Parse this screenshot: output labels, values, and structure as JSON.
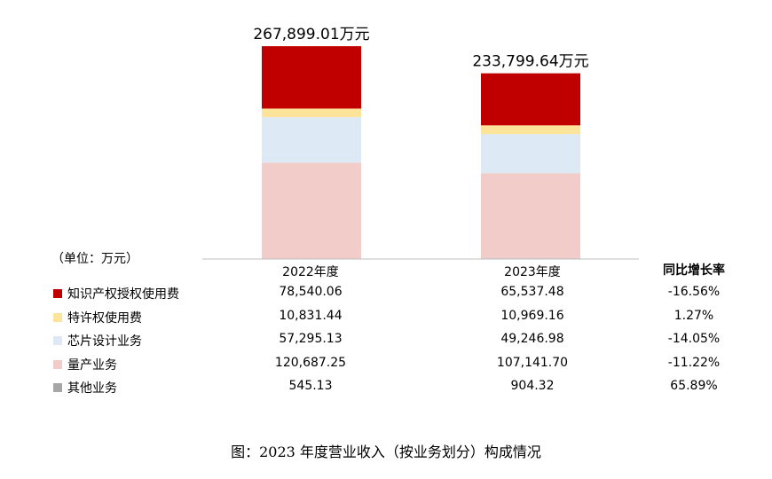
{
  "unit_label": "（单位：万元）",
  "yoy_header": "同比增长率",
  "caption": "图：2023 年度营业收入（按业务划分）构成情况",
  "chart_data": {
    "type": "bar",
    "stacked": true,
    "categories": [
      "2022年度",
      "2023年度"
    ],
    "totals": [
      "267,899.01万元",
      "233,799.64万元"
    ],
    "total_values": [
      267899.01,
      233799.64
    ],
    "series": [
      {
        "name": "其他业务",
        "values": [
          545.13,
          904.32
        ],
        "display": [
          "545.13",
          "904.32"
        ],
        "yoy": "65.89%",
        "color": "#a6a6a6"
      },
      {
        "name": "量产业务",
        "values": [
          120687.25,
          107141.7
        ],
        "display": [
          "120,687.25",
          "107,141.70"
        ],
        "yoy": "-11.22%",
        "color": "#f2ccc8"
      },
      {
        "name": "芯片设计业务",
        "values": [
          57295.13,
          49246.98
        ],
        "display": [
          "57,295.13",
          "49,246.98"
        ],
        "yoy": "-14.05%",
        "color": "#dde9f5"
      },
      {
        "name": "特许权使用费",
        "values": [
          10831.44,
          10969.16
        ],
        "display": [
          "10,831.44",
          "10,969.16"
        ],
        "yoy": "1.27%",
        "color": "#fde49a"
      },
      {
        "name": "知识产权授权使用费",
        "values": [
          78540.06,
          65537.48
        ],
        "display": [
          "78,540.06",
          "65,537.48"
        ],
        "yoy": "-16.56%",
        "color": "#c00000"
      }
    ],
    "legend_order": [
      4,
      3,
      2,
      1,
      0
    ],
    "grid": false
  }
}
